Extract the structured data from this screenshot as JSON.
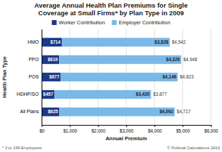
{
  "chart_data": {
    "type": "bar",
    "orientation": "horizontal",
    "stacked": true,
    "title": "Average Annual Health Plan Premiums for Single\nCoverage at Small Firms* by Plan Type in 2009",
    "categories": [
      "HMO",
      "PPO",
      "POS",
      "HDHP/SO",
      "All Plans"
    ],
    "series": [
      {
        "name": "Worker Contribution",
        "color": "#1a3a87",
        "values": [
          714,
          619,
          677,
          457,
          625
        ],
        "value_labels": [
          "$714",
          "$619",
          "$677",
          "$457",
          "$625"
        ]
      },
      {
        "name": "Employer Contribution",
        "color": "#7ab8e8",
        "values": [
          3828,
          4329,
          4146,
          3420,
          4092
        ],
        "value_labels": [
          "$3,828",
          "$4,329",
          "$4,146",
          "$3,420",
          "$4,092"
        ]
      }
    ],
    "totals": [
      4542,
      4948,
      4823,
      3877,
      4717
    ],
    "total_labels": [
      "$4,542",
      "$4,948",
      "$4,823",
      "$3,877",
      "$4,717"
    ],
    "data_labels": true,
    "xlabel": "Annual Premium",
    "ylabel": "Health Plan Type",
    "xlim": [
      0,
      6000
    ],
    "xticks": [
      {
        "value": 0,
        "label": "$0"
      },
      {
        "value": 1000,
        "label": "$1,000"
      },
      {
        "value": 2000,
        "label": "$2,000"
      },
      {
        "value": 3000,
        "label": "$3,000"
      },
      {
        "value": 4000,
        "label": "$4,000"
      },
      {
        "value": 5000,
        "label": "$5,000"
      },
      {
        "value": 6000,
        "label": "$6,000"
      }
    ],
    "grid": true,
    "legend": "top",
    "annotations": [
      "* 3 to 199 Employees",
      "© Political Calculations 2010"
    ]
  }
}
